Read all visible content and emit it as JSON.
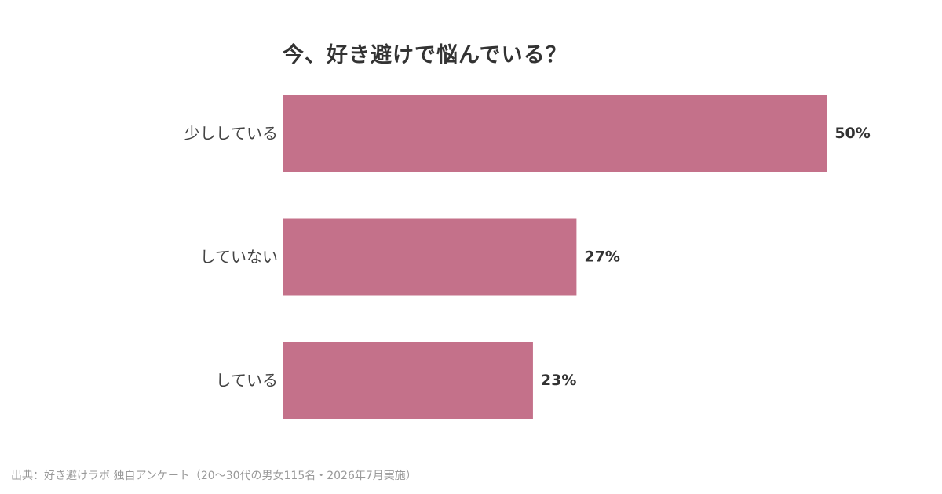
{
  "chart_data": {
    "type": "bar",
    "orientation": "horizontal",
    "title": "今、好き避けで悩んでいる？",
    "categories": [
      "少ししている",
      "していない",
      "している"
    ],
    "values": [
      50,
      27,
      23
    ],
    "value_labels": [
      "50%",
      "27%",
      "23%"
    ],
    "unit": "%",
    "xlim": [
      0,
      60
    ],
    "grid": false,
    "legend": "none",
    "bar_color": "#c4718a"
  },
  "source": "出典：好き避けラボ 独自アンケート（20〜30代の男女115名・2026年7月実施）"
}
